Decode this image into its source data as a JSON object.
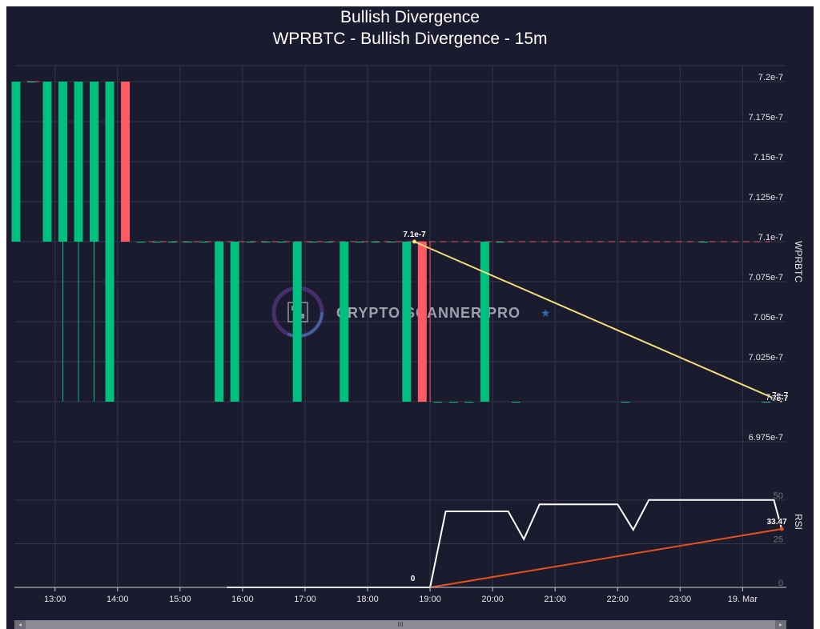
{
  "title": "Bullish Divergence",
  "subtitle": "WPRBTC - Bullish Divergence - 15m",
  "watermark": "CRYPTO SCANNER PRO",
  "colors": {
    "background": "#1a1b2e",
    "grid": "#34364a",
    "up": "#00c07f",
    "down": "#ff5a64",
    "divergence_price": "#f5dd7a",
    "divergence_rsi": "#e8501c",
    "rsi_line": "#ffffff",
    "axis_text": "#e6e6e6",
    "rsi_axis_text": "#777777"
  },
  "chart_data": [
    {
      "type": "candlestick",
      "name": "price",
      "ylabel": "WPRBTC",
      "ylim": [
        6.965e-07,
        7.21e-07
      ],
      "yticks": [
        "7.2e-7",
        "7.175e-7",
        "7.15e-7",
        "7.125e-7",
        "7.1e-7",
        "7.075e-7",
        "7.05e-7",
        "7.025e-7",
        "7e-7",
        "6.975e-7"
      ],
      "ytick_values": [
        7.2e-07,
        7.175e-07,
        7.15e-07,
        7.125e-07,
        7.1e-07,
        7.075e-07,
        7.05e-07,
        7.025e-07,
        7e-07,
        6.975e-07
      ],
      "candles": [
        {
          "t": 12.375,
          "o": 7.1e-07,
          "h": 7.2e-07,
          "l": 7.1e-07,
          "c": 7.2e-07
        },
        {
          "t": 12.625,
          "o": 7.2e-07,
          "h": 7.2e-07,
          "l": 7.2e-07,
          "c": 7.2e-07
        },
        {
          "t": 12.875,
          "o": 7.1e-07,
          "h": 7.2e-07,
          "l": 7.1e-07,
          "c": 7.2e-07
        },
        {
          "t": 13.125,
          "o": 7.1e-07,
          "h": 7.2e-07,
          "l": 7e-07,
          "c": 7.2e-07
        },
        {
          "t": 13.375,
          "o": 7.1e-07,
          "h": 7.2e-07,
          "l": 7e-07,
          "c": 7.2e-07
        },
        {
          "t": 13.625,
          "o": 7.1e-07,
          "h": 7.2e-07,
          "l": 7e-07,
          "c": 7.2e-07
        },
        {
          "t": 13.875,
          "o": 7e-07,
          "h": 7.2e-07,
          "l": 7e-07,
          "c": 7.2e-07
        },
        {
          "t": 14.125,
          "o": 7.2e-07,
          "h": 7.2e-07,
          "l": 7.1e-07,
          "c": 7.1e-07
        },
        {
          "t": 14.375,
          "o": 7.1e-07,
          "h": 7.1e-07,
          "l": 7.1e-07,
          "c": 7.1e-07
        },
        {
          "t": 14.625,
          "o": 7.1e-07,
          "h": 7.1e-07,
          "l": 7.1e-07,
          "c": 7.1e-07
        },
        {
          "t": 14.875,
          "o": 7.1e-07,
          "h": 7.1e-07,
          "l": 7.1e-07,
          "c": 7.1e-07
        },
        {
          "t": 15.125,
          "o": 7.1e-07,
          "h": 7.1e-07,
          "l": 7.1e-07,
          "c": 7.1e-07
        },
        {
          "t": 15.375,
          "o": 7.1e-07,
          "h": 7.1e-07,
          "l": 7.1e-07,
          "c": 7.1e-07
        },
        {
          "t": 15.625,
          "o": 7e-07,
          "h": 7.1e-07,
          "l": 7e-07,
          "c": 7.1e-07
        },
        {
          "t": 15.875,
          "o": 7e-07,
          "h": 7.1e-07,
          "l": 7e-07,
          "c": 7.1e-07
        },
        {
          "t": 16.125,
          "o": 7.1e-07,
          "h": 7.1e-07,
          "l": 7.1e-07,
          "c": 7.1e-07
        },
        {
          "t": 16.375,
          "o": 7.1e-07,
          "h": 7.1e-07,
          "l": 7.1e-07,
          "c": 7.1e-07
        },
        {
          "t": 16.625,
          "o": 7.1e-07,
          "h": 7.1e-07,
          "l": 7.1e-07,
          "c": 7.1e-07
        },
        {
          "t": 16.875,
          "o": 7e-07,
          "h": 7.1e-07,
          "l": 7e-07,
          "c": 7.1e-07
        },
        {
          "t": 17.125,
          "o": 7.1e-07,
          "h": 7.1e-07,
          "l": 7.1e-07,
          "c": 7.1e-07
        },
        {
          "t": 17.375,
          "o": 7.1e-07,
          "h": 7.1e-07,
          "l": 7.1e-07,
          "c": 7.1e-07
        },
        {
          "t": 17.625,
          "o": 7e-07,
          "h": 7.1e-07,
          "l": 7e-07,
          "c": 7.1e-07
        },
        {
          "t": 17.875,
          "o": 7.1e-07,
          "h": 7.1e-07,
          "l": 7.1e-07,
          "c": 7.1e-07
        },
        {
          "t": 18.125,
          "o": 7.1e-07,
          "h": 7.1e-07,
          "l": 7.1e-07,
          "c": 7.1e-07
        },
        {
          "t": 18.375,
          "o": 7.1e-07,
          "h": 7.1e-07,
          "l": 7.1e-07,
          "c": 7.1e-07
        },
        {
          "t": 18.625,
          "o": 7e-07,
          "h": 7.1e-07,
          "l": 7e-07,
          "c": 7.1e-07
        },
        {
          "t": 18.875,
          "o": 7.1e-07,
          "h": 7.1e-07,
          "l": 7e-07,
          "c": 7e-07
        },
        {
          "t": 19.125,
          "o": 7e-07,
          "h": 7e-07,
          "l": 7e-07,
          "c": 7e-07
        },
        {
          "t": 19.375,
          "o": 7e-07,
          "h": 7e-07,
          "l": 7e-07,
          "c": 7e-07
        },
        {
          "t": 19.625,
          "o": 7e-07,
          "h": 7e-07,
          "l": 7e-07,
          "c": 7e-07
        },
        {
          "t": 19.875,
          "o": 7e-07,
          "h": 7.1e-07,
          "l": 7e-07,
          "c": 7.1e-07
        },
        {
          "t": 20.125,
          "o": 7.1e-07,
          "h": 7.1e-07,
          "l": 7.1e-07,
          "c": 7.1e-07
        },
        {
          "t": 20.375,
          "o": 7e-07,
          "h": 7e-07,
          "l": 7e-07,
          "c": 7e-07
        },
        {
          "t": 22.125,
          "o": 7e-07,
          "h": 7e-07,
          "l": 7e-07,
          "c": 7e-07
        },
        {
          "t": 23.375,
          "o": 7.1e-07,
          "h": 7.1e-07,
          "l": 7.1e-07,
          "c": 7.1e-07
        },
        {
          "t": 24.375,
          "o": 7e-07,
          "h": 7e-07,
          "l": 7e-07,
          "c": 7e-07
        }
      ],
      "divergence": {
        "from": {
          "t": 18.75,
          "v": 7.1e-07
        },
        "to": {
          "t": 24.625,
          "v": 7e-07
        }
      },
      "annotations": [
        "7.1e-7",
        "7e-7",
        "7e-7"
      ]
    },
    {
      "type": "line",
      "name": "RSI",
      "ylabel": "RSI",
      "ylim": [
        0,
        50
      ],
      "yticks": [
        "0",
        "25",
        "50"
      ],
      "ytick_values": [
        0,
        25,
        50
      ],
      "x": [
        15.75,
        16.0,
        16.5,
        17.0,
        17.5,
        18.0,
        18.5,
        18.75,
        19.0,
        19.25,
        19.5,
        19.75,
        20.0,
        20.25,
        20.5,
        20.75,
        21.0,
        21.25,
        21.5,
        21.75,
        22.0,
        22.25,
        22.5,
        22.75,
        23.0,
        23.25,
        23.5,
        23.75,
        24.0,
        24.25,
        24.5,
        24.625
      ],
      "values": [
        0,
        0,
        0,
        0,
        0,
        0,
        0,
        0,
        0,
        43.6,
        43.6,
        43.6,
        43.6,
        43.6,
        27.6,
        47.6,
        47.6,
        47.6,
        47.6,
        47.6,
        47.6,
        33.0,
        50.1,
        50.1,
        50.1,
        50.1,
        50.1,
        50.1,
        50.1,
        50.1,
        50.1,
        33.47
      ],
      "divergence": {
        "from": {
          "t": 19.0,
          "v": 0
        },
        "to": {
          "t": 24.625,
          "v": 33.47
        }
      },
      "annotations": [
        "0",
        "33.47"
      ]
    }
  ],
  "x_axis": {
    "xlim": [
      12.35,
      24.7
    ],
    "ticks": [
      "13:00",
      "14:00",
      "15:00",
      "16:00",
      "17:00",
      "18:00",
      "19:00",
      "20:00",
      "21:00",
      "22:00",
      "23:00",
      "19. Mar"
    ],
    "tick_values": [
      13,
      14,
      15,
      16,
      17,
      18,
      19,
      20,
      21,
      22,
      23,
      24
    ]
  },
  "scrollbar": {
    "left_arrow": "◂",
    "right_arrow": "▸",
    "thumb_grip": "III"
  }
}
